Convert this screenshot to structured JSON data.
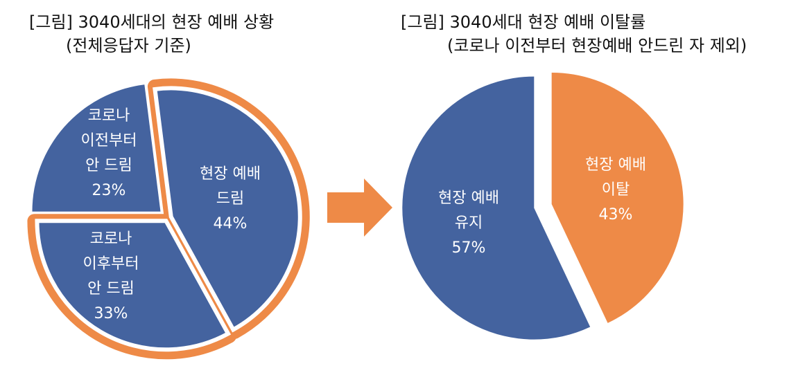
{
  "chart_data": [
    {
      "type": "pie",
      "title": "[그림] 3040세대의 현장 예배 상황",
      "subtitle": "(전체응답자 기준)",
      "slices": [
        {
          "label_lines": [
            "코로나",
            "이전부터",
            "안 드림"
          ],
          "percent_text": "23%",
          "value": 23,
          "color": "#44639f",
          "highlight": false
        },
        {
          "label_lines": [
            "현장 예배",
            "드림"
          ],
          "percent_text": "44%",
          "value": 44,
          "color": "#44639f",
          "highlight": true
        },
        {
          "label_lines": [
            "코로나",
            "이후부터",
            "안 드림"
          ],
          "percent_text": "33%",
          "value": 33,
          "color": "#44639f",
          "highlight": true
        }
      ],
      "highlight_color": "#ee8a47"
    },
    {
      "type": "pie",
      "title": "[그림] 3040세대 현장 예배 이탈률",
      "subtitle": "(코로나 이전부터 현장예배 안드린 자 제외)",
      "slices": [
        {
          "label_lines": [
            "현장 예배",
            "이탈"
          ],
          "percent_text": "43%",
          "value": 43,
          "color": "#ee8a47"
        },
        {
          "label_lines": [
            "현장 예배",
            "유지"
          ],
          "percent_text": "57%",
          "value": 57,
          "color": "#44639f"
        }
      ]
    }
  ],
  "arrow": {
    "color": "#ee8a47"
  }
}
